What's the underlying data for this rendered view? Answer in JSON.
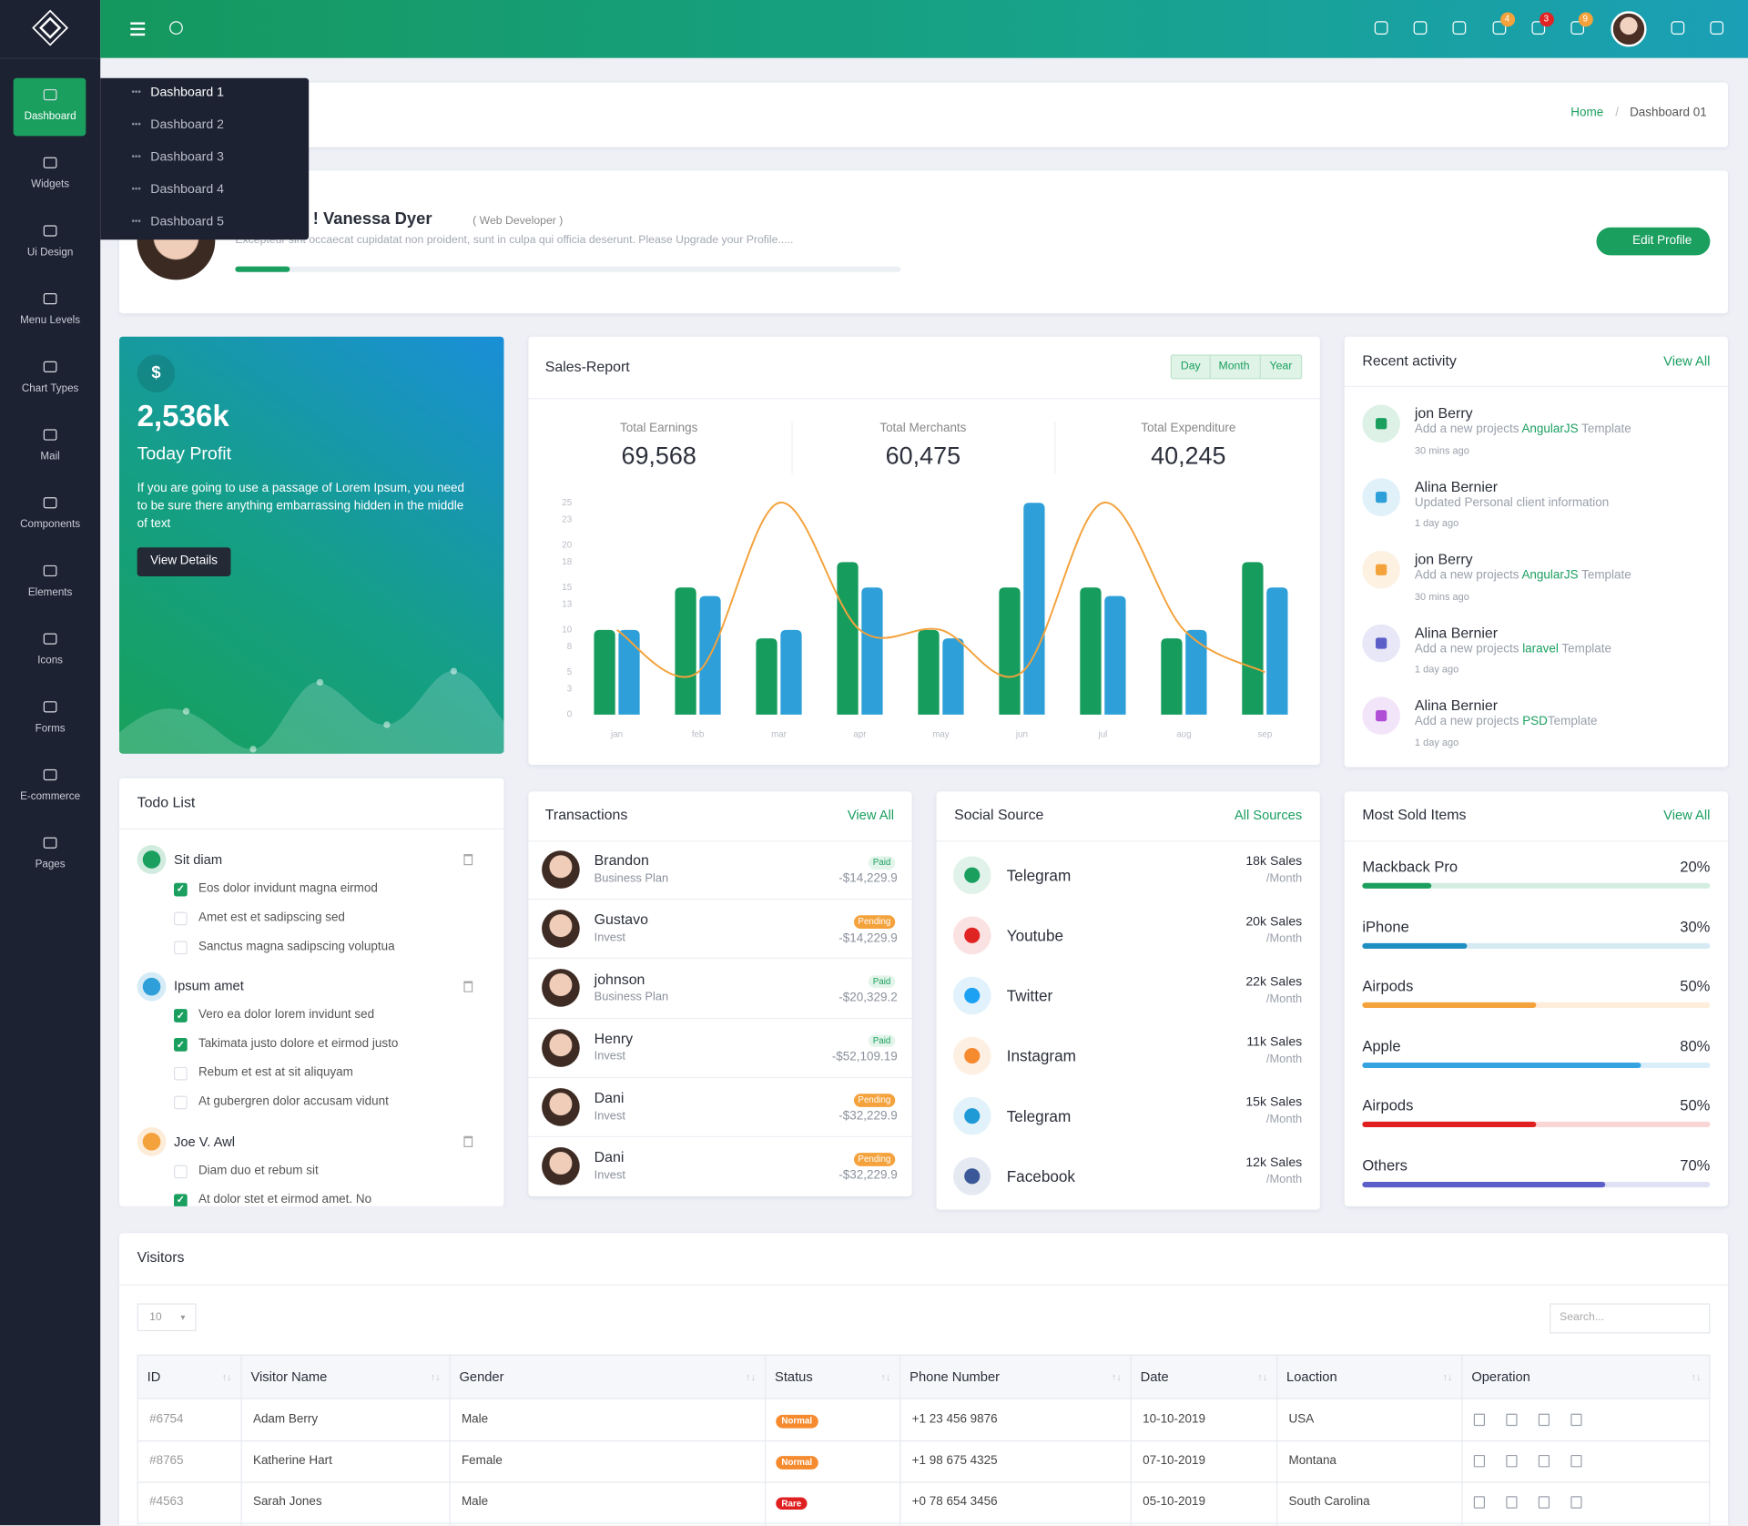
{
  "sidebar": {
    "items": [
      "Dashboard",
      "Widgets",
      "Ui Design",
      "Menu Levels",
      "Chart Types",
      "Mail",
      "Components",
      "Elements",
      "Icons",
      "Forms",
      "E-commerce",
      "Pages"
    ]
  },
  "dropdown": [
    "Dashboard 1",
    "Dashboard 2",
    "Dashboard 3",
    "Dashboard 4",
    "Dashboard 5"
  ],
  "topbar": {
    "badges": [
      4,
      3,
      9
    ]
  },
  "breadcrumb": [
    "Home",
    "Dashboard 01"
  ],
  "profile": {
    "greeting": "Welcome ! Vanessa Dyer",
    "role": "( Web Developer )",
    "text": "Excepteur sint occaecat cupidatat non proident, sunt in culpa qui officia deserunt. Please Upgrade your Profile.....",
    "button": "Edit Profile"
  },
  "profit": {
    "amount": "2,536k",
    "title": "Today Profit",
    "text": "If you are going to use a passage of Lorem Ipsum, you need to be sure there anything embarrassing hidden in the middle of text",
    "button": "View Details"
  },
  "sales": {
    "title": "Sales-Report",
    "periods": [
      "Day",
      "Month",
      "Year"
    ],
    "summary": [
      {
        "label": "Total Earnings",
        "value": "69,568"
      },
      {
        "label": "Total Merchants",
        "value": "60,475"
      },
      {
        "label": "Total Expenditure",
        "value": "40,245"
      }
    ]
  },
  "chart_data": {
    "type": "bar",
    "categories": [
      "jan",
      "feb",
      "mar",
      "apr",
      "may",
      "jun",
      "jul",
      "aug",
      "sep"
    ],
    "series": [
      {
        "color": "#169c5c",
        "values": [
          10,
          15,
          9,
          18,
          10,
          15,
          15,
          9,
          18
        ]
      },
      {
        "color": "#2e9fd8",
        "values": [
          10,
          14,
          10,
          15,
          9,
          25,
          14,
          10,
          15
        ]
      },
      {
        "color": "#f4a23c",
        "type": "line",
        "values": [
          10,
          5,
          25,
          10,
          10,
          5,
          25,
          10,
          5
        ]
      }
    ],
    "ylim": [
      0,
      25
    ],
    "yticks": [
      0,
      3,
      5,
      8,
      10,
      13,
      15,
      18,
      20,
      23,
      25
    ]
  },
  "activity": {
    "title": "Recent activity",
    "link": "View All",
    "items": [
      {
        "name": "jon Berry",
        "text": [
          "Add a new projects ",
          "AngularJS",
          " Template"
        ],
        "time": "30 mins ago",
        "color": "#1a9f5f"
      },
      {
        "name": "Alina Bernier",
        "text": [
          "Updated Personal client information"
        ],
        "time": "1 day ago",
        "color": "#2e9fd8"
      },
      {
        "name": "jon Berry",
        "text": [
          "Add a new projects ",
          "AngularJS",
          " Template"
        ],
        "time": "30 mins ago",
        "color": "#f4a23c"
      },
      {
        "name": "Alina Bernier",
        "text": [
          "Add a new projects ",
          "laravel",
          " Template"
        ],
        "time": "1 day ago",
        "color": "#5b5fc7"
      },
      {
        "name": "Alina Bernier",
        "text": [
          "Add a new projects ",
          "PSD",
          "Template"
        ],
        "time": "1 day ago",
        "color": "#b04fd6"
      }
    ]
  },
  "todo": {
    "title": "Todo List",
    "groups": [
      {
        "title": "Sit diam",
        "color": "#1a9f5f",
        "tasks": [
          {
            "text": "Eos dolor invidunt magna eirmod",
            "done": true
          },
          {
            "text": "Amet est et sadipscing sed",
            "done": false
          },
          {
            "text": "Sanctus magna sadipscing voluptua",
            "done": false
          }
        ]
      },
      {
        "title": "Ipsum amet",
        "color": "#2e9fd8",
        "tasks": [
          {
            "text": "Vero ea dolor lorem invidunt sed",
            "done": true
          },
          {
            "text": "Takimata justo dolore et eirmod justo",
            "done": true
          },
          {
            "text": "Rebum et est at sit aliquyam",
            "done": false
          },
          {
            "text": "At gubergren dolor accusam vidunt",
            "done": false
          }
        ]
      },
      {
        "title": "Joe V. Awl",
        "color": "#f4a23c",
        "tasks": [
          {
            "text": "Diam duo et rebum sit",
            "done": false
          },
          {
            "text": "At dolor stet et eirmod amet. No",
            "done": true
          }
        ]
      }
    ]
  },
  "transactions": {
    "title": "Transactions",
    "link": "View All",
    "rows": [
      {
        "name": "Brandon",
        "plan": "Business Plan",
        "status": "Paid",
        "tone": "#e3f5ea",
        "tone_text": "#1a9f5f",
        "amount": "-$14,229.9"
      },
      {
        "name": "Gustavo",
        "plan": "Invest",
        "status": "Pending",
        "tone": "#f4a23c",
        "tone_text": "#ffffff",
        "amount": "-$14,229.9"
      },
      {
        "name": "johnson",
        "plan": "Business Plan",
        "status": "Paid",
        "tone": "#e3f5ea",
        "tone_text": "#1a9f5f",
        "amount": "-$20,329.2"
      },
      {
        "name": "Henry",
        "plan": "Invest",
        "status": "Paid",
        "tone": "#e3f5ea",
        "tone_text": "#1a9f5f",
        "amount": "-$52,109.19"
      },
      {
        "name": "Dani",
        "plan": "Invest",
        "status": "Pending",
        "tone": "#f4a23c",
        "tone_text": "#ffffff",
        "amount": "-$32,229.9"
      },
      {
        "name": "Dani",
        "plan": "Invest",
        "status": "Pending",
        "tone": "#f4a23c",
        "tone_text": "#ffffff",
        "amount": "-$32,229.9"
      }
    ]
  },
  "social": {
    "title": "Social Source",
    "link": "All Sources",
    "period": "/Month",
    "rows": [
      {
        "name": "Telegram",
        "sales": "18k Sales",
        "color": "#1a9f5f"
      },
      {
        "name": "Youtube",
        "sales": "20k Sales",
        "color": "#e02424"
      },
      {
        "name": "Twitter",
        "sales": "22k Sales",
        "color": "#1da1f2"
      },
      {
        "name": "Instagram",
        "sales": "11k Sales",
        "color": "#f58a2e"
      },
      {
        "name": "Telegram",
        "sales": "15k Sales",
        "color": "#1f9ad6"
      },
      {
        "name": "Facebook",
        "sales": "12k Sales",
        "color": "#3b5998"
      }
    ]
  },
  "sold": {
    "title": "Most Sold Items",
    "link": "View All",
    "items": [
      {
        "name": "Mackback Pro",
        "value": 20,
        "value_label": "20%",
        "color": "#1a9f5f"
      },
      {
        "name": "iPhone",
        "value": 30,
        "value_label": "30%",
        "color": "#1f8fc1"
      },
      {
        "name": "Airpods",
        "value": 50,
        "value_label": "50%",
        "color": "#f4a23c"
      },
      {
        "name": "Apple",
        "value": 80,
        "value_label": "80%",
        "color": "#35a3e0"
      },
      {
        "name": "Airpods",
        "value": 50,
        "value_label": "50%",
        "color": "#e02020"
      },
      {
        "name": "Others",
        "value": 70,
        "value_label": "70%",
        "color": "#5b5fc7"
      }
    ]
  },
  "visitors": {
    "title": "Visitors",
    "length": "10",
    "search": "Search...",
    "columns": [
      "ID",
      "Visitor Name",
      "Gender",
      "Status",
      "Phone Number",
      "Date",
      "Loaction",
      "Operation"
    ],
    "rows": [
      {
        "cells": [
          "#6754",
          "Adam Berry",
          "Male",
          "Normal",
          "+1 23 456 9876",
          "10-10-2019",
          "USA"
        ],
        "tone": "#f58a2e"
      },
      {
        "cells": [
          "#8765",
          "Katherine Hart",
          "Female",
          "Normal",
          "+1 98 675 4325",
          "07-10-2019",
          "Montana"
        ],
        "tone": "#f58a2e"
      },
      {
        "cells": [
          "#4563",
          "Sarah Jones",
          "Male",
          "Rare",
          "+0 78 654 3456",
          "05-10-2019",
          "South Carolina"
        ],
        "tone": "#e02020"
      }
    ]
  }
}
